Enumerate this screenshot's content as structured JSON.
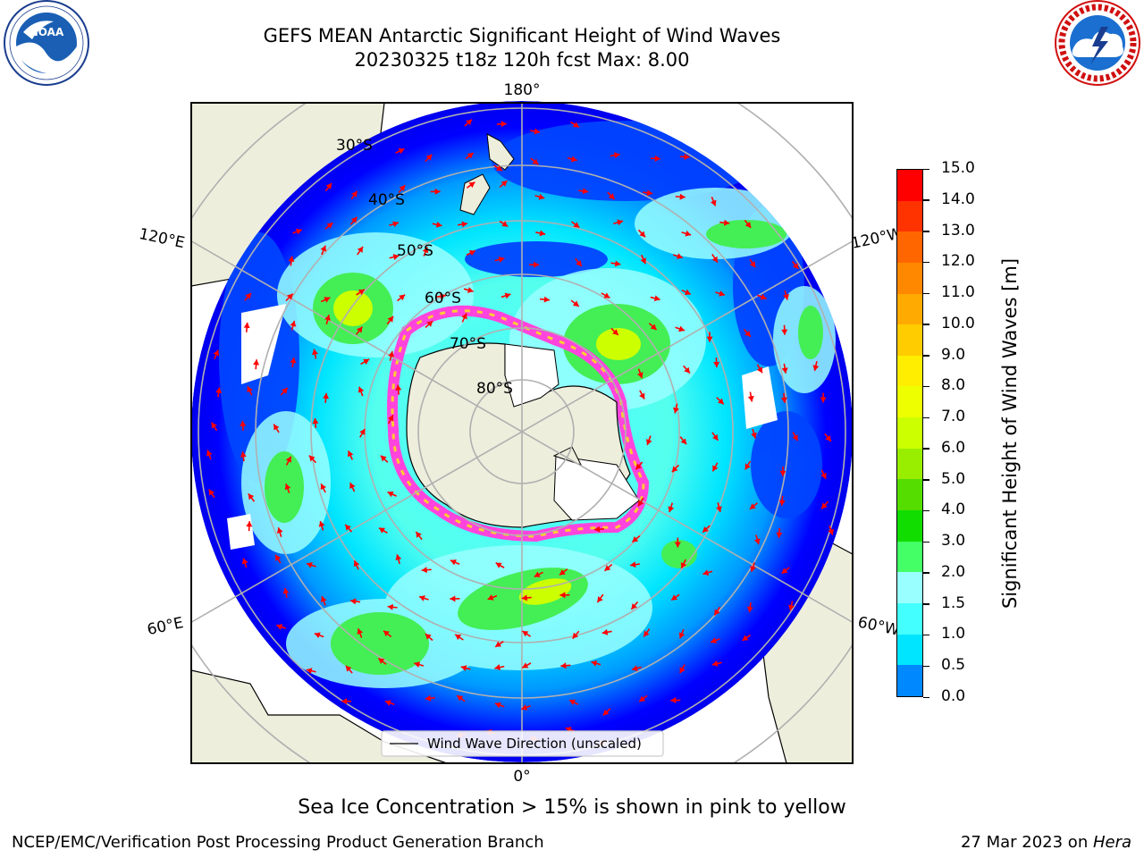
{
  "header": {
    "title_line1": "GEFS MEAN Antarctic Significant Height of Wind Waves",
    "title_line2": "20230325 t18z 120h fcst   Max: 8.00"
  },
  "logos": {
    "noaa": {
      "icon": "noaa-logo",
      "text": "NOAA",
      "ring_text": "NATIONAL OCEANIC AND ATMOSPHERIC ADMINISTRATION · U.S. DEPARTMENT OF COMMERCE"
    },
    "nws": {
      "icon": "nws-logo",
      "ring_text": "NATIONAL WEATHER SERVICE"
    }
  },
  "map": {
    "longitude_labels": {
      "top": "180°",
      "bottom": "0°",
      "left_upper": "120°E",
      "left_lower": "60°E",
      "right_upper": "120°W",
      "right_lower": "60°W"
    },
    "latitude_labels": [
      "30°S",
      "40°S",
      "50°S",
      "60°S",
      "70°S",
      "80°S"
    ],
    "legend_label": "Wind Wave Direction (unscaled)",
    "colors": {
      "land": "#eeeedd",
      "ice_edge": "#ff44dd",
      "arrow": "#ff0000",
      "grid": "#b0b0b0"
    }
  },
  "colorbar": {
    "label": "Significant Height of Wind Waves [m]",
    "ticks": [
      "15.0",
      "14.0",
      "13.0",
      "12.0",
      "11.0",
      "10.0",
      "9.0",
      "8.0",
      "7.0",
      "6.0",
      "5.0",
      "4.0",
      "3.0",
      "2.0",
      "1.5",
      "1.0",
      "0.5",
      "0.0"
    ],
    "colors": [
      "#ff0000",
      "#ff3300",
      "#ff6600",
      "#ff8800",
      "#ffaa00",
      "#ffcc00",
      "#ffee00",
      "#eeff00",
      "#ccff00",
      "#99ee00",
      "#55dd00",
      "#11dd00",
      "#44ff66",
      "#99ffff",
      "#44ffff",
      "#00e5ff",
      "#0088ff",
      "#0000ff"
    ]
  },
  "caption": "Sea Ice Concentration > 15% is shown in pink to yellow",
  "footer": {
    "left": "NCEP/EMC/Verification Post Processing Product Generation Branch",
    "right_prefix": "27 Mar 2023 on ",
    "right_italic": "Hera"
  }
}
